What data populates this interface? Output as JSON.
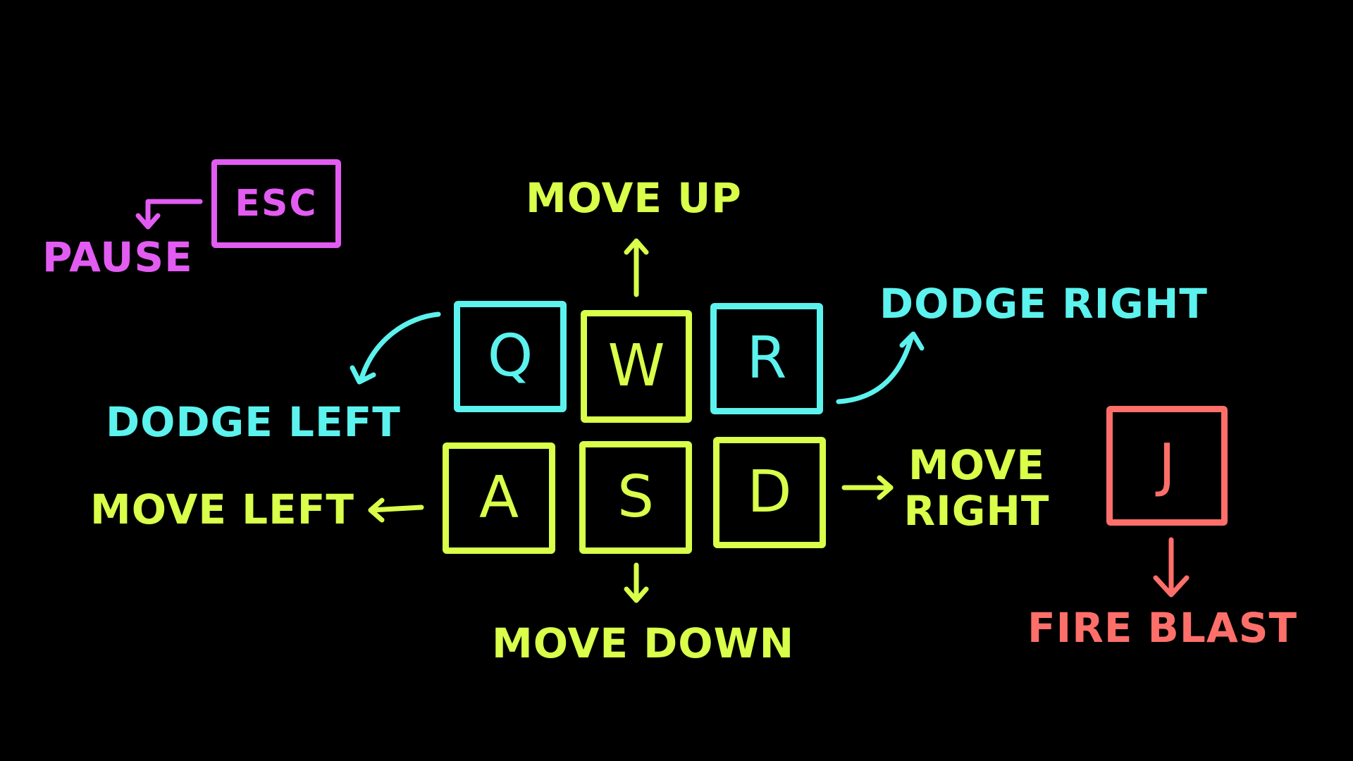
{
  "colors": {
    "background": "#000000",
    "lime": "#D9FF4A",
    "cyan": "#5CF2EE",
    "magenta": "#E25CF2",
    "salmon": "#FF6F6A"
  },
  "keys": {
    "esc": "ESC",
    "q": "Q",
    "w": "W",
    "r": "R",
    "a": "A",
    "s": "S",
    "d": "D",
    "j": "J"
  },
  "actions": {
    "pause": "PAUSE",
    "move_up": "MOVE UP",
    "dodge_right": "DODGE RIGHT",
    "dodge_left": "DODGE LEFT",
    "move_left": "MOVE LEFT",
    "move_right_line1": "MOVE",
    "move_right_line2": "RIGHT",
    "move_down": "MOVE DOWN",
    "fire_blast": "FIRE BLAST"
  },
  "arrow_icons": {
    "pause": "arrow-down-left-icon",
    "move_up": "arrow-up-icon",
    "dodge_left": "curved-arrow-down-left-icon",
    "dodge_right": "curved-arrow-up-right-icon",
    "move_left": "arrow-left-icon",
    "move_right": "arrow-right-icon",
    "move_down": "arrow-down-icon",
    "fire_blast": "arrow-down-icon"
  }
}
